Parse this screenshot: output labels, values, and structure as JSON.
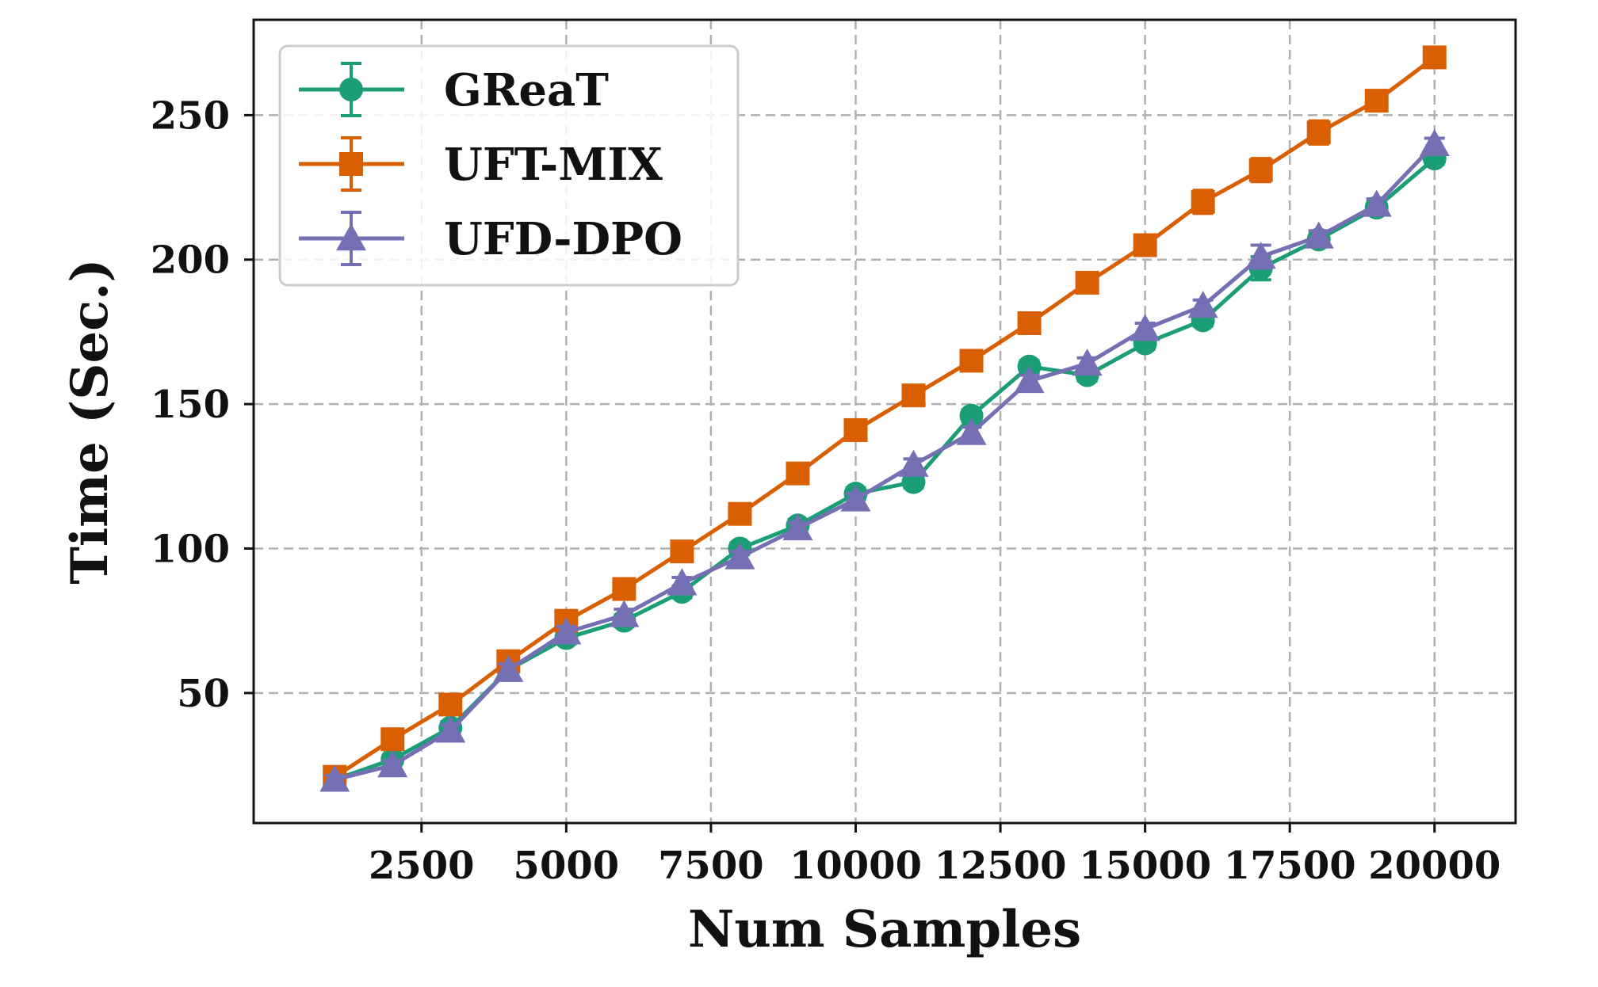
{
  "chart_data": {
    "type": "line",
    "title": "",
    "xlabel": "Num Samples",
    "ylabel": "Time (Sec.)",
    "xlim": [
      -400,
      21400
    ],
    "ylim": [
      5,
      283
    ],
    "xticks": [
      2500,
      5000,
      7500,
      10000,
      12500,
      15000,
      17500,
      20000
    ],
    "xtick_labels": [
      "2500",
      "5000",
      "7500",
      "10000",
      "12500",
      "15000",
      "17500",
      "20000"
    ],
    "yticks": [
      50,
      100,
      150,
      200,
      250
    ],
    "ytick_labels": [
      "50",
      "100",
      "150",
      "200",
      "250"
    ],
    "grid": true,
    "legend_position": "top-left",
    "x": [
      1000,
      2000,
      3000,
      4000,
      5000,
      6000,
      7000,
      8000,
      9000,
      10000,
      11000,
      12000,
      13000,
      14000,
      15000,
      16000,
      17000,
      18000,
      19000,
      20000
    ],
    "series": [
      {
        "name": "GReaT",
        "color": "#1b9e77",
        "marker": "circle",
        "values": [
          20,
          27,
          38,
          58,
          69,
          75,
          85,
          100,
          108,
          119,
          123,
          146,
          163,
          160,
          171,
          179,
          197,
          207,
          218,
          235
        ],
        "errors": [
          1.5,
          1.5,
          2,
          2,
          2,
          2,
          2,
          2,
          2,
          2,
          2,
          2,
          2,
          2,
          2,
          2,
          4,
          2,
          2,
          2
        ]
      },
      {
        "name": "UFT-MIX",
        "color": "#d95f02",
        "marker": "square",
        "values": [
          21,
          34,
          46,
          61,
          75,
          86,
          99,
          112,
          126,
          141,
          153,
          165,
          178,
          192,
          205,
          220,
          231,
          244,
          255,
          270
        ],
        "errors": [
          2,
          2,
          2,
          2,
          2,
          2,
          2,
          2,
          2,
          3,
          2,
          2,
          2,
          2,
          2,
          4,
          4,
          4,
          2,
          3
        ]
      },
      {
        "name": "UFD-DPO",
        "color": "#7570b3",
        "marker": "triangle",
        "values": [
          20,
          25,
          37,
          58,
          71,
          77,
          88,
          97,
          107,
          117,
          129,
          140,
          158,
          164,
          176,
          184,
          201,
          208,
          219,
          240
        ],
        "errors": [
          1.5,
          1.5,
          2,
          2,
          2,
          2,
          2,
          2,
          2,
          2,
          2,
          2,
          2,
          2,
          2,
          2,
          4,
          2,
          2,
          2
        ]
      }
    ]
  }
}
